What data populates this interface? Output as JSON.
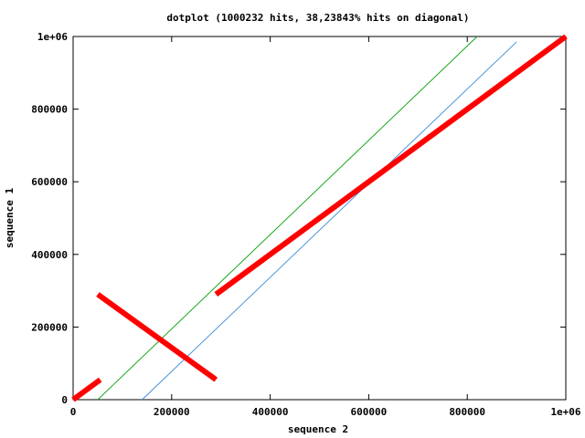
{
  "chart_data": {
    "type": "scatter",
    "title": "dotplot (1000232 hits, 38,23843% hits on diagonal)",
    "xlabel": "sequence 2",
    "ylabel": "sequence 1",
    "xlim": [
      0,
      1000000
    ],
    "ylim": [
      0,
      1000000
    ],
    "x_ticks": [
      {
        "value": 0,
        "label": "0"
      },
      {
        "value": 200000,
        "label": "200000"
      },
      {
        "value": 400000,
        "label": "400000"
      },
      {
        "value": 600000,
        "label": "600000"
      },
      {
        "value": 800000,
        "label": "800000"
      },
      {
        "value": 1000000,
        "label": "1e+06"
      }
    ],
    "y_ticks": [
      {
        "value": 0,
        "label": "0"
      },
      {
        "value": 200000,
        "label": "200000"
      },
      {
        "value": 400000,
        "label": "400000"
      },
      {
        "value": 600000,
        "label": "600000"
      },
      {
        "value": 800000,
        "label": "800000"
      },
      {
        "value": 1000000,
        "label": "1e+06"
      }
    ],
    "grid": false,
    "legend": "none",
    "series": [
      {
        "color": "#ff0000",
        "style": "thick",
        "segments": [
          [
            [
              0,
              0
            ],
            [
              55000,
              55000
            ]
          ],
          [
            [
              50000,
              290000
            ],
            [
              290000,
              55000
            ]
          ],
          [
            [
              290000,
              290000
            ],
            [
              1000000,
              1000000
            ]
          ]
        ]
      },
      {
        "color": "#00a000",
        "style": "thin",
        "segments": [
          [
            [
              50000,
              0
            ],
            [
              820000,
              1000000
            ]
          ]
        ]
      },
      {
        "color": "#3a8bd8",
        "style": "thin",
        "segments": [
          [
            [
              140000,
              0
            ],
            [
              900000,
              985000
            ]
          ]
        ]
      }
    ]
  }
}
